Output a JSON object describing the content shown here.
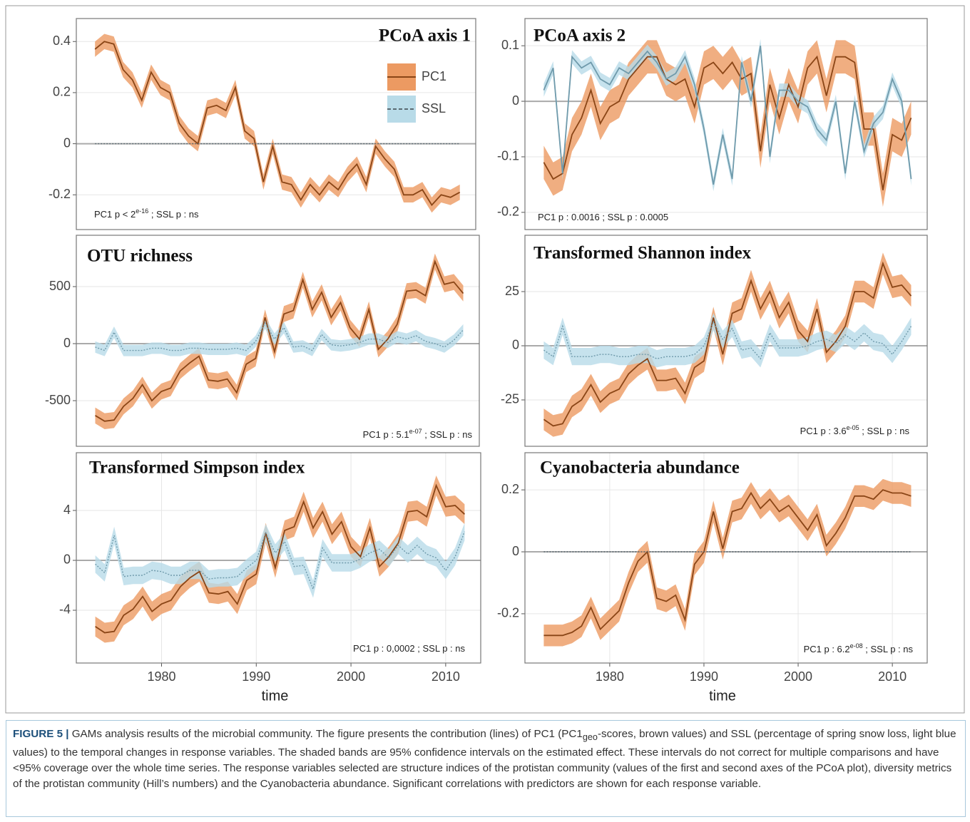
{
  "chart_data": [
    {
      "type": "line",
      "title": "PCoA axis 1",
      "xlim": [
        1971,
        2013.7
      ],
      "ylim": [
        -0.336,
        0.49
      ],
      "yticks": [
        0.4,
        0.2,
        0,
        -0.2
      ],
      "grid": true,
      "legend": true,
      "annotation": [
        "PC1 p < 2",
        "e-16",
        " ; SSL p : ns"
      ],
      "x": [
        1973,
        1974,
        1975,
        1976,
        1977,
        1978,
        1979,
        1980,
        1981,
        1982,
        1983,
        1984,
        1985,
        1986,
        1987,
        1988,
        1989,
        1990,
        1991,
        1992,
        1993,
        1994,
        1995,
        1996,
        1997,
        1998,
        1999,
        2000,
        2001,
        2002,
        2003,
        2004,
        2005,
        2006,
        2007,
        2008,
        2009,
        2010,
        2011,
        2012
      ],
      "series": [
        {
          "name": "PC1",
          "color": "#8a4516",
          "band_color": "#ec9a62",
          "dash": false,
          "ci": 0.03,
          "values": [
            0.37,
            0.4,
            0.39,
            0.29,
            0.25,
            0.17,
            0.28,
            0.22,
            0.2,
            0.08,
            0.03,
            0.0,
            0.14,
            0.15,
            0.13,
            0.22,
            0.05,
            0.02,
            -0.15,
            -0.01,
            -0.15,
            -0.16,
            -0.22,
            -0.16,
            -0.2,
            -0.15,
            -0.18,
            -0.12,
            -0.08,
            -0.16,
            -0.01,
            -0.06,
            -0.1,
            -0.2,
            -0.2,
            -0.18,
            -0.24,
            -0.2,
            -0.21,
            -0.19
          ]
        },
        {
          "name": "SSL",
          "color": "#5a6a72",
          "band_color": "#b8dbe8",
          "dash": true,
          "ci": 0,
          "values": [
            0,
            0,
            0,
            0,
            0,
            0,
            0,
            0,
            0,
            0,
            0,
            0,
            0,
            0,
            0,
            0,
            0,
            0,
            0,
            0,
            0,
            0,
            0,
            0,
            0,
            0,
            0,
            0,
            0,
            0,
            0,
            0,
            0,
            0,
            0,
            0,
            0,
            0,
            0,
            0
          ]
        }
      ]
    },
    {
      "type": "line",
      "title": "PCoA axis 2",
      "xlim": [
        1971,
        2013.7
      ],
      "ylim": [
        -0.231,
        0.149
      ],
      "yticks": [
        0.1,
        0,
        -0.1,
        -0.2
      ],
      "grid": true,
      "annotation": [
        "PC1 p : 0.0016 ; SSL p : 0.0005"
      ],
      "x": [
        1973,
        1974,
        1975,
        1976,
        1977,
        1978,
        1979,
        1980,
        1981,
        1982,
        1983,
        1984,
        1985,
        1986,
        1987,
        1988,
        1989,
        1990,
        1991,
        1992,
        1993,
        1994,
        1995,
        1996,
        1997,
        1998,
        1999,
        2000,
        2001,
        2002,
        2003,
        2004,
        2005,
        2006,
        2007,
        2008,
        2009,
        2010,
        2011,
        2012
      ],
      "series": [
        {
          "name": "PC1",
          "color": "#8a4516",
          "band_color": "#ec9a62",
          "dash": false,
          "ci": 0.03,
          "values": [
            -0.11,
            -0.14,
            -0.13,
            -0.06,
            -0.03,
            0.02,
            -0.04,
            -0.01,
            0.0,
            0.04,
            0.06,
            0.08,
            0.08,
            0.04,
            0.03,
            0.04,
            -0.01,
            0.06,
            0.07,
            0.05,
            0.07,
            0.04,
            0.05,
            -0.09,
            0.03,
            -0.03,
            0.03,
            -0.01,
            0.06,
            0.08,
            0.01,
            0.08,
            0.08,
            0.07,
            -0.05,
            -0.05,
            -0.16,
            -0.06,
            -0.07,
            -0.03
          ]
        },
        {
          "name": "SSL",
          "color": "#6f9aab",
          "band_color": "#b8dbe8",
          "dash": false,
          "ci": 0.012,
          "values": [
            0.02,
            0.06,
            -0.13,
            0.08,
            0.06,
            0.07,
            0.04,
            0.03,
            0.06,
            0.05,
            0.07,
            0.09,
            0.07,
            0.04,
            0.05,
            0.08,
            0.03,
            -0.05,
            -0.15,
            -0.06,
            -0.14,
            0.07,
            0.0,
            0.1,
            -0.1,
            0.02,
            0.02,
            0.0,
            -0.01,
            -0.05,
            -0.07,
            0.0,
            -0.13,
            0.0,
            -0.09,
            -0.04,
            -0.02,
            0.04,
            0.0,
            -0.14
          ]
        }
      ]
    },
    {
      "type": "line",
      "title": "OTU richness",
      "xlim": [
        1971,
        2013.7
      ],
      "ylim": [
        -900,
        950
      ],
      "yticks": [
        500,
        0,
        -500
      ],
      "grid": true,
      "annotation": [
        "PC1 p : 5.1",
        "e-07",
        " ; SSL p : ns"
      ],
      "x": [
        1973,
        1974,
        1975,
        1976,
        1977,
        1978,
        1979,
        1980,
        1981,
        1982,
        1983,
        1984,
        1985,
        1986,
        1987,
        1988,
        1989,
        1990,
        1991,
        1992,
        1993,
        1994,
        1995,
        1996,
        1997,
        1998,
        1999,
        2000,
        2001,
        2002,
        2003,
        2004,
        2005,
        2006,
        2007,
        2008,
        2009,
        2010,
        2011,
        2012
      ],
      "series": [
        {
          "name": "PC1",
          "color": "#8a4516",
          "band_color": "#ec9a62",
          "dash": false,
          "ci": 70,
          "values": [
            -630,
            -680,
            -670,
            -550,
            -480,
            -360,
            -500,
            -420,
            -390,
            -240,
            -170,
            -110,
            -320,
            -330,
            -310,
            -430,
            -180,
            -130,
            230,
            -70,
            260,
            290,
            560,
            300,
            450,
            230,
            360,
            140,
            40,
            300,
            -50,
            40,
            170,
            460,
            470,
            420,
            720,
            520,
            540,
            440
          ]
        },
        {
          "name": "SSL",
          "color": "#6f9aab",
          "band_color": "#b8dbe8",
          "dash": true,
          "ci": 50,
          "values": [
            -30,
            -60,
            100,
            -60,
            -60,
            -60,
            -40,
            -40,
            -60,
            -60,
            -40,
            -40,
            -50,
            -50,
            -50,
            -40,
            -60,
            20,
            180,
            40,
            140,
            -30,
            -20,
            -60,
            80,
            -10,
            -20,
            -10,
            10,
            40,
            40,
            10,
            60,
            40,
            70,
            20,
            0,
            -30,
            30,
            120
          ]
        }
      ]
    },
    {
      "type": "line",
      "title": "Transformed Shannon index",
      "xlim": [
        1971,
        2013.7
      ],
      "ylim": [
        -46.4,
        51
      ],
      "yticks": [
        25,
        0,
        -25
      ],
      "grid": true,
      "annotation": [
        "PC1 p : 3.6",
        "e-05",
        " ; SSL p : ns"
      ],
      "x": [
        1973,
        1974,
        1975,
        1976,
        1977,
        1978,
        1979,
        1980,
        1981,
        1982,
        1983,
        1984,
        1985,
        1986,
        1987,
        1988,
        1989,
        1990,
        1991,
        1992,
        1993,
        1994,
        1995,
        1996,
        1997,
        1998,
        1999,
        2000,
        2001,
        2002,
        2003,
        2004,
        2005,
        2006,
        2007,
        2008,
        2009,
        2010,
        2011,
        2012
      ],
      "series": [
        {
          "name": "PC1",
          "color": "#8a4516",
          "band_color": "#ec9a62",
          "dash": false,
          "ci": 5,
          "values": [
            -34,
            -37,
            -36,
            -28,
            -25,
            -18,
            -26,
            -22,
            -20,
            -13,
            -9,
            -6,
            -16,
            -16,
            -15,
            -22,
            -10,
            -7,
            13,
            -4,
            15,
            17,
            30,
            17,
            25,
            13,
            20,
            7,
            2,
            17,
            -3,
            2,
            9,
            25,
            25,
            22,
            38,
            27,
            28,
            23
          ]
        },
        {
          "name": "SSL",
          "color": "#6f9aab",
          "band_color": "#b8dbe8",
          "dash": true,
          "ci": 4,
          "values": [
            -2,
            -5,
            9,
            -5,
            -5,
            -5,
            -4,
            -4,
            -5,
            -5,
            -4,
            -4,
            -6,
            -5,
            -5,
            -5,
            -4,
            0,
            11,
            3,
            8,
            -2,
            -1,
            -6,
            6,
            -1,
            -1,
            -1,
            0,
            2,
            3,
            1,
            5,
            2,
            6,
            2,
            1,
            -4,
            2,
            9
          ]
        }
      ]
    },
    {
      "type": "line",
      "title": "Transformed Simpson index",
      "xlim": [
        1971,
        2013.7
      ],
      "ylim": [
        -8.23,
        8.63
      ],
      "yticks": [
        4,
        0,
        -4
      ],
      "xticks": [
        1980,
        1990,
        2000,
        2010
      ],
      "xlabel": "time",
      "grid": true,
      "annotation": [
        "PC1 p : 0,0002 ; SSL p : ns"
      ],
      "x": [
        1973,
        1974,
        1975,
        1976,
        1977,
        1978,
        1979,
        1980,
        1981,
        1982,
        1983,
        1984,
        1985,
        1986,
        1987,
        1988,
        1989,
        1990,
        1991,
        1992,
        1993,
        1994,
        1995,
        1996,
        1997,
        1998,
        1999,
        2000,
        2001,
        2002,
        2003,
        2004,
        2005,
        2006,
        2007,
        2008,
        2009,
        2010,
        2011,
        2012
      ],
      "series": [
        {
          "name": "PC1",
          "color": "#8a4516",
          "band_color": "#ec9a62",
          "dash": false,
          "ci": 0.8,
          "values": [
            -5.3,
            -5.8,
            -5.7,
            -4.4,
            -3.9,
            -2.9,
            -4.1,
            -3.5,
            -3.2,
            -2.1,
            -1.4,
            -0.9,
            -2.6,
            -2.7,
            -2.5,
            -3.5,
            -1.6,
            -1.1,
            2.2,
            -0.6,
            2.4,
            2.7,
            4.7,
            2.6,
            3.9,
            2.1,
            3.1,
            1.1,
            0.3,
            2.6,
            -0.5,
            0.3,
            1.4,
            3.9,
            4.0,
            3.5,
            6.0,
            4.3,
            4.4,
            3.7
          ]
        },
        {
          "name": "SSL",
          "color": "#6f9aab",
          "band_color": "#b8dbe8",
          "dash": true,
          "ci": 0.7,
          "values": [
            -0.3,
            -1,
            2,
            -1.3,
            -1.2,
            -1.2,
            -0.8,
            -0.9,
            -1.2,
            -1.2,
            -0.8,
            -0.8,
            -1.5,
            -1.4,
            -1.4,
            -1.3,
            -0.6,
            0,
            2.2,
            0.6,
            1.5,
            -0.5,
            -0.4,
            -2.3,
            1,
            -0.2,
            -0.2,
            -0.2,
            0.1,
            0.6,
            0.9,
            0.2,
            1.2,
            0.5,
            1.2,
            0.5,
            0.2,
            -0.8,
            0.3,
            2.3
          ]
        }
      ]
    },
    {
      "type": "line",
      "title": "Cyanobacteria abundance",
      "xlim": [
        1971,
        2013.7
      ],
      "ylim": [
        -0.359,
        0.32
      ],
      "yticks": [
        0.2,
        0,
        -0.2
      ],
      "xticks": [
        1980,
        1990,
        2000,
        2010
      ],
      "xlabel": "time",
      "grid": true,
      "annotation": [
        "PC1 p : 6.2",
        "e-08",
        " ; SSL p : ns"
      ],
      "x": [
        1973,
        1974,
        1975,
        1976,
        1977,
        1978,
        1979,
        1980,
        1981,
        1982,
        1983,
        1984,
        1985,
        1986,
        1987,
        1988,
        1989,
        1990,
        1991,
        1992,
        1993,
        1994,
        1995,
        1996,
        1997,
        1998,
        1999,
        2000,
        2001,
        2002,
        2003,
        2004,
        2005,
        2006,
        2007,
        2008,
        2009,
        2010,
        2011,
        2012
      ],
      "series": [
        {
          "name": "PC1",
          "color": "#8a4516",
          "band_color": "#ec9a62",
          "dash": false,
          "ci": 0.035,
          "values": [
            -0.27,
            -0.27,
            -0.27,
            -0.26,
            -0.24,
            -0.18,
            -0.25,
            -0.22,
            -0.19,
            -0.1,
            -0.03,
            0.0,
            -0.15,
            -0.16,
            -0.14,
            -0.22,
            -0.04,
            0.0,
            0.13,
            0.01,
            0.13,
            0.14,
            0.19,
            0.14,
            0.17,
            0.13,
            0.15,
            0.11,
            0.07,
            0.12,
            0.02,
            0.06,
            0.11,
            0.18,
            0.18,
            0.17,
            0.2,
            0.19,
            0.19,
            0.18
          ]
        },
        {
          "name": "SSL",
          "color": "#5a6a72",
          "band_color": "#b8dbe8",
          "dash": true,
          "ci": 0,
          "values": [
            0,
            0,
            0,
            0,
            0,
            0,
            0,
            0,
            0,
            0,
            0,
            0,
            0,
            0,
            0,
            0,
            0,
            0,
            0,
            0,
            0,
            0,
            0,
            0,
            0,
            0,
            0,
            0,
            0,
            0,
            0,
            0,
            0,
            0,
            0,
            0,
            0,
            0,
            0,
            0
          ]
        }
      ]
    }
  ],
  "caption": [
    "FIGURE 5 |",
    " GAMs analysis results of the microbial community. The figure presents the contribution (lines) of PC1 (PC1",
    "geo",
    "-scores, brown values) and SSL (percentage of spring snow loss, light blue values) to the temporal changes in response variables. The shaded bands are 95% confidence intervals on the estimated effect. These intervals do not correct for multiple comparisons and have <95% coverage over the whole time series. The response variables selected are structure indices of the protistan community (values of the first and second axes of the PCoA plot), diversity metrics of the protistan community (Hill’s numbers) and the Cyanobacteria abundance. Significant correlations with predictors are shown for each response variable."
  ]
}
